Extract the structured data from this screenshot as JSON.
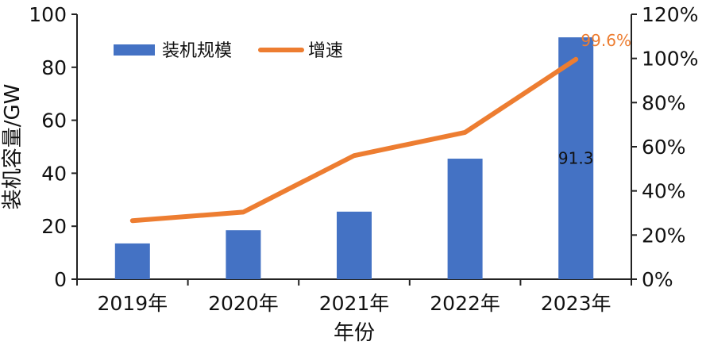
{
  "chart_data": {
    "type": "bar",
    "categories": [
      "2019年",
      "2020年",
      "2021年",
      "2022年",
      "2023年"
    ],
    "xlabel": "年份",
    "ylabel": "装机容量/GW",
    "ylim": [
      0,
      100
    ],
    "yticks": [
      "0",
      "20",
      "40",
      "60",
      "80",
      "100"
    ],
    "y2lim": [
      0,
      1.2
    ],
    "y2ticks": [
      "0%",
      "20%",
      "40%",
      "60%",
      "80%",
      "100%",
      "120%"
    ],
    "series": [
      {
        "name": "装机规模",
        "type": "bar",
        "axis": "left",
        "color": "#4472C4",
        "values": [
          13.5,
          18.5,
          25.5,
          45.5,
          91.3
        ]
      },
      {
        "name": "增速",
        "type": "line",
        "axis": "right",
        "color": "#ED7D31",
        "values": [
          0.265,
          0.304,
          0.56,
          0.665,
          0.996
        ]
      }
    ],
    "data_labels": [
      {
        "text": "91.3",
        "series": 0,
        "index": 4,
        "color": "#111111"
      },
      {
        "text": "99.6%",
        "series": 1,
        "index": 4,
        "color": "#ED7D31"
      }
    ],
    "legend_position": "top-left",
    "grid": false
  }
}
